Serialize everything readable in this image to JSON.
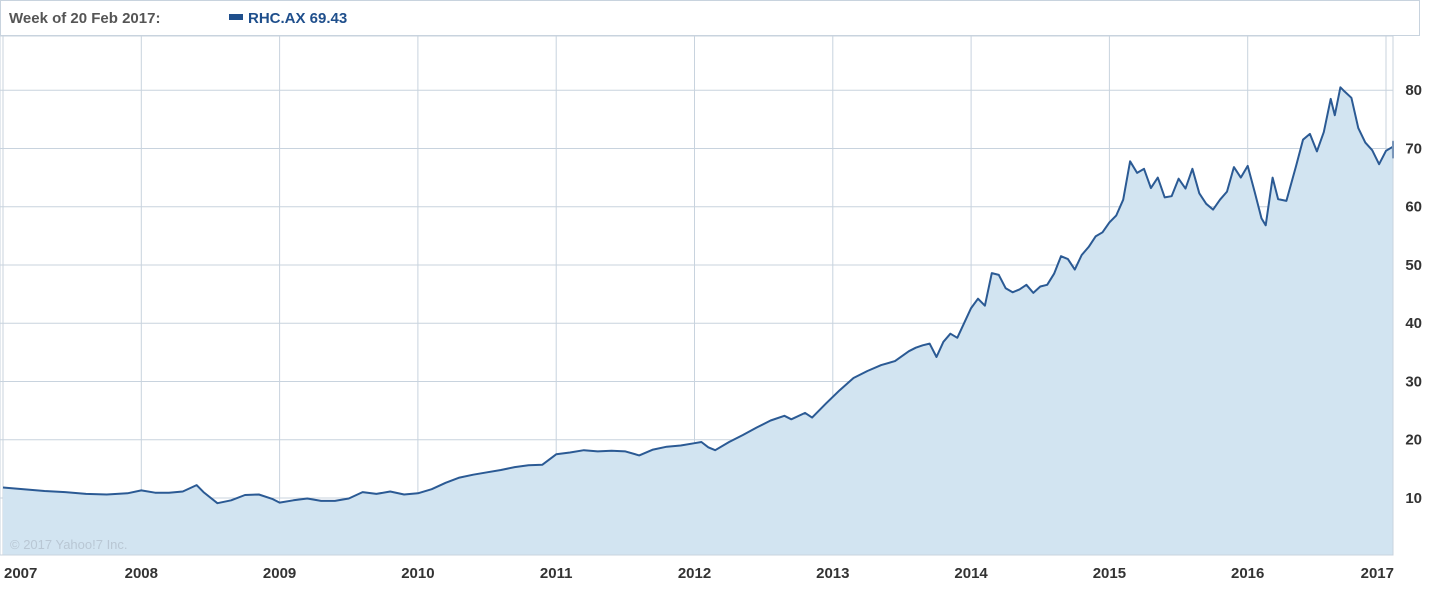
{
  "header": {
    "week_label": "Week of 20 Feb 2017:",
    "series_label": "RHC.AX 69.43"
  },
  "copyright": "© 2017 Yahoo!7 Inc.",
  "colors": {
    "line": "#2b5a94",
    "fill": "#d2e4f1",
    "grid": "#c8d3de"
  },
  "chart_data": {
    "type": "area",
    "xlabel": "",
    "ylabel": "",
    "x_tick_labels": [
      "2007",
      "2008",
      "2009",
      "2010",
      "2011",
      "2012",
      "2013",
      "2014",
      "2015",
      "2016",
      "2017"
    ],
    "y_tick_labels": [
      "10",
      "20",
      "30",
      "40",
      "50",
      "60",
      "70",
      "80"
    ],
    "xlim": [
      2007.0,
      2017.15
    ],
    "ylim": [
      0,
      92
    ],
    "grid": true,
    "series": [
      {
        "name": "RHC.AX",
        "points": [
          [
            2007.0,
            11.8
          ],
          [
            2007.15,
            11.5
          ],
          [
            2007.3,
            11.2
          ],
          [
            2007.45,
            11.0
          ],
          [
            2007.6,
            10.7
          ],
          [
            2007.75,
            10.6
          ],
          [
            2007.9,
            10.8
          ],
          [
            2008.0,
            11.3
          ],
          [
            2008.1,
            10.9
          ],
          [
            2008.2,
            10.9
          ],
          [
            2008.3,
            11.1
          ],
          [
            2008.4,
            12.2
          ],
          [
            2008.45,
            11.0
          ],
          [
            2008.55,
            9.1
          ],
          [
            2008.65,
            9.6
          ],
          [
            2008.75,
            10.5
          ],
          [
            2008.85,
            10.6
          ],
          [
            2008.95,
            9.8
          ],
          [
            2009.0,
            9.2
          ],
          [
            2009.1,
            9.6
          ],
          [
            2009.2,
            9.9
          ],
          [
            2009.3,
            9.5
          ],
          [
            2009.4,
            9.5
          ],
          [
            2009.5,
            9.9
          ],
          [
            2009.6,
            11.0
          ],
          [
            2009.7,
            10.7
          ],
          [
            2009.8,
            11.1
          ],
          [
            2009.9,
            10.6
          ],
          [
            2010.0,
            10.8
          ],
          [
            2010.1,
            11.5
          ],
          [
            2010.2,
            12.6
          ],
          [
            2010.3,
            13.5
          ],
          [
            2010.4,
            14.0
          ],
          [
            2010.5,
            14.4
          ],
          [
            2010.6,
            14.8
          ],
          [
            2010.7,
            15.3
          ],
          [
            2010.8,
            15.6
          ],
          [
            2010.9,
            15.7
          ],
          [
            2011.0,
            17.5
          ],
          [
            2011.1,
            17.8
          ],
          [
            2011.2,
            18.2
          ],
          [
            2011.3,
            18.0
          ],
          [
            2011.4,
            18.1
          ],
          [
            2011.5,
            18.0
          ],
          [
            2011.6,
            17.3
          ],
          [
            2011.7,
            18.3
          ],
          [
            2011.8,
            18.8
          ],
          [
            2011.9,
            19.0
          ],
          [
            2012.0,
            19.4
          ],
          [
            2012.05,
            19.6
          ],
          [
            2012.1,
            18.7
          ],
          [
            2012.15,
            18.2
          ],
          [
            2012.25,
            19.6
          ],
          [
            2012.35,
            20.8
          ],
          [
            2012.45,
            22.1
          ],
          [
            2012.55,
            23.3
          ],
          [
            2012.65,
            24.1
          ],
          [
            2012.7,
            23.5
          ],
          [
            2012.8,
            24.6
          ],
          [
            2012.85,
            23.8
          ],
          [
            2012.95,
            26.2
          ],
          [
            2013.05,
            28.5
          ],
          [
            2013.15,
            30.6
          ],
          [
            2013.25,
            31.8
          ],
          [
            2013.35,
            32.8
          ],
          [
            2013.45,
            33.5
          ],
          [
            2013.55,
            35.2
          ],
          [
            2013.6,
            35.8
          ],
          [
            2013.65,
            36.2
          ],
          [
            2013.7,
            36.5
          ],
          [
            2013.75,
            34.2
          ],
          [
            2013.8,
            36.8
          ],
          [
            2013.85,
            38.2
          ],
          [
            2013.9,
            37.5
          ],
          [
            2014.0,
            42.6
          ],
          [
            2014.05,
            44.2
          ],
          [
            2014.1,
            43.0
          ],
          [
            2014.15,
            48.6
          ],
          [
            2014.2,
            48.3
          ],
          [
            2014.25,
            46.0
          ],
          [
            2014.3,
            45.3
          ],
          [
            2014.35,
            45.8
          ],
          [
            2014.4,
            46.6
          ],
          [
            2014.45,
            45.2
          ],
          [
            2014.5,
            46.3
          ],
          [
            2014.55,
            46.6
          ],
          [
            2014.6,
            48.5
          ],
          [
            2014.65,
            51.5
          ],
          [
            2014.7,
            51.0
          ],
          [
            2014.75,
            49.2
          ],
          [
            2014.8,
            51.7
          ],
          [
            2014.85,
            53.1
          ],
          [
            2014.9,
            54.9
          ],
          [
            2014.95,
            55.6
          ],
          [
            2015.0,
            57.3
          ],
          [
            2015.05,
            58.5
          ],
          [
            2015.1,
            61.2
          ],
          [
            2015.15,
            67.8
          ],
          [
            2015.2,
            65.8
          ],
          [
            2015.25,
            66.5
          ],
          [
            2015.3,
            63.2
          ],
          [
            2015.35,
            65.0
          ],
          [
            2015.4,
            61.6
          ],
          [
            2015.45,
            61.8
          ],
          [
            2015.5,
            64.8
          ],
          [
            2015.55,
            63.1
          ],
          [
            2015.6,
            66.5
          ],
          [
            2015.65,
            62.3
          ],
          [
            2015.7,
            60.5
          ],
          [
            2015.75,
            59.5
          ],
          [
            2015.8,
            61.2
          ],
          [
            2015.85,
            62.6
          ],
          [
            2015.9,
            66.8
          ],
          [
            2015.95,
            65.0
          ],
          [
            2016.0,
            67.0
          ],
          [
            2016.05,
            62.6
          ],
          [
            2016.1,
            58.0
          ],
          [
            2016.13,
            56.8
          ],
          [
            2016.18,
            65.0
          ],
          [
            2016.22,
            61.3
          ],
          [
            2016.28,
            61.0
          ],
          [
            2016.35,
            67.0
          ],
          [
            2016.4,
            71.5
          ],
          [
            2016.45,
            72.5
          ],
          [
            2016.5,
            69.5
          ],
          [
            2016.55,
            72.8
          ],
          [
            2016.6,
            78.5
          ],
          [
            2016.63,
            75.7
          ],
          [
            2016.67,
            80.5
          ],
          [
            2016.7,
            79.8
          ],
          [
            2016.75,
            78.7
          ],
          [
            2016.8,
            73.5
          ],
          [
            2016.85,
            71.0
          ],
          [
            2016.9,
            69.7
          ],
          [
            2016.95,
            67.3
          ],
          [
            2017.0,
            69.6
          ],
          [
            2017.05,
            70.3
          ],
          [
            2017.1,
            68.4
          ],
          [
            2017.12,
            71.2
          ],
          [
            2017.15,
            69.43
          ]
        ]
      }
    ]
  }
}
